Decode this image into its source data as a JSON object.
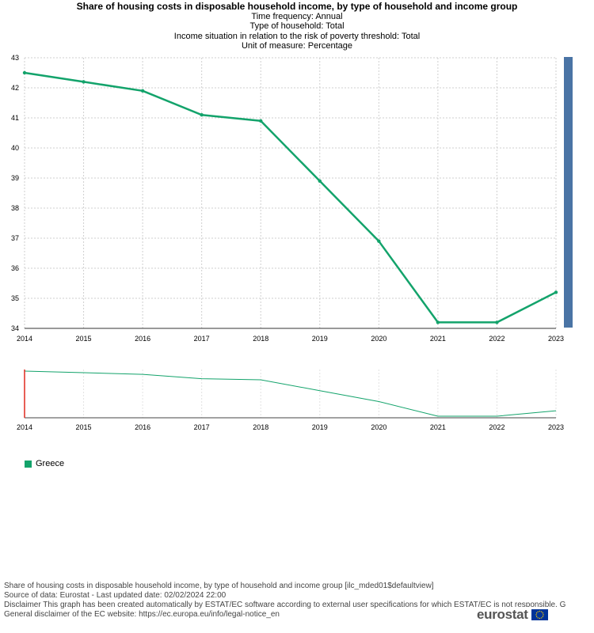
{
  "titles": {
    "main": "Share of housing costs in disposable household income, by type of household and income group",
    "line1": "Time frequency:  Annual",
    "line2": "Type of household:  Total",
    "line3": "Income situation in relation to the risk of poverty threshold:  Total",
    "line4": "Unit of measure:  Percentage"
  },
  "chart_data": {
    "type": "line",
    "title": "Share of housing costs in disposable household income, by type of household and income group",
    "x": [
      "2014",
      "2015",
      "2016",
      "2017",
      "2018",
      "2019",
      "2020",
      "2021",
      "2022",
      "2023"
    ],
    "series": [
      {
        "name": "Greece",
        "color": "#13a36b",
        "values": [
          42.5,
          42.2,
          41.9,
          41.1,
          40.9,
          38.9,
          36.9,
          34.2,
          34.2,
          35.2
        ]
      }
    ],
    "ylim": [
      34,
      43
    ],
    "yticks": [
      34,
      35,
      36,
      37,
      38,
      39,
      40,
      41,
      42,
      43
    ],
    "grid": true,
    "legend": "bottom-left",
    "scrollbar_color": "#4a74a5",
    "navigator_marker_color": "#e0281e"
  },
  "legend": {
    "label": "Greece",
    "color": "#13a36b"
  },
  "footer": {
    "line1": "Share of housing costs in disposable household income, by type of household and income group [ilc_mded01$defaultview]",
    "line2": "Source of data: Eurostat - Last updated date: 02/02/2024 22:00",
    "line3": "Disclaimer This graph has been created automatically by ESTAT/EC software according to external user specifications for which ESTAT/EC is not responsible. G",
    "line4": "General disclaimer of the EC website: https://ec.europa.eu/info/legal-notice_en"
  },
  "logo": {
    "text": "eurostat",
    "flag_color": "#003399",
    "star_color": "#ffcc00"
  }
}
